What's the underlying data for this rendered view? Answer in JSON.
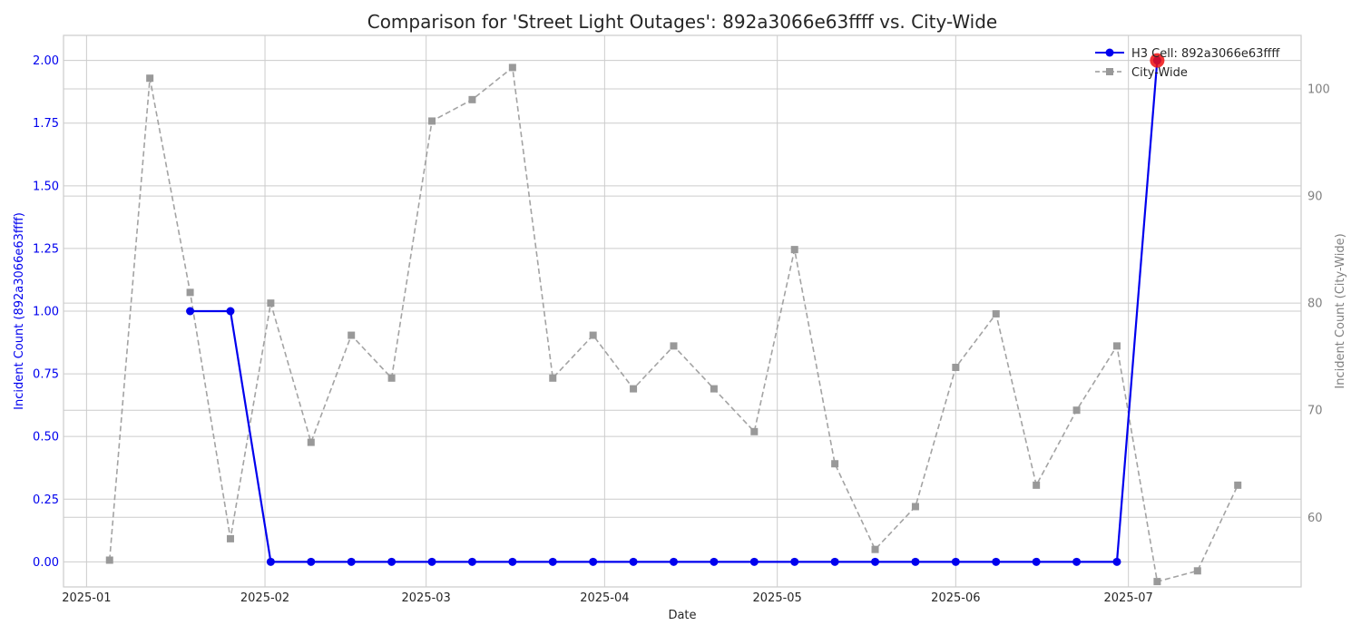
{
  "chart_data": {
    "type": "line",
    "title": "Comparison for 'Street Light Outages': 892a3066e63ffff vs. City-Wide",
    "xlabel": "Date",
    "ylabel_left": "Incident Count (892a3066e63ffff)",
    "ylabel_right": "Incident Count (City-Wide)",
    "x_ticks": [
      "2025-01",
      "2025-02",
      "2025-03",
      "2025-04",
      "2025-05",
      "2025-06",
      "2025-07"
    ],
    "y_left_ticks": [
      "0.00",
      "0.25",
      "0.50",
      "0.75",
      "1.00",
      "1.25",
      "1.50",
      "1.75",
      "2.00"
    ],
    "y_right_ticks": [
      "60",
      "70",
      "80",
      "90",
      "100"
    ],
    "y_left_lim": [
      -0.1,
      2.1
    ],
    "y_right_lim": [
      53.5,
      105
    ],
    "grid": true,
    "legend_position": "top-right",
    "colors": {
      "cell": "#0000ee",
      "city": "#999999",
      "highlight": "#ee1111",
      "left_axis": "#0000ee",
      "right_axis": "#808080"
    },
    "series": [
      {
        "name": "H3 Cell: 892a3066e63ffff",
        "axis": "left",
        "style": "solid-circle",
        "x": [
          "2025-01-19",
          "2025-01-26",
          "2025-02-02",
          "2025-02-09",
          "2025-02-16",
          "2025-02-23",
          "2025-03-02",
          "2025-03-09",
          "2025-03-16",
          "2025-03-23",
          "2025-03-30",
          "2025-04-06",
          "2025-04-13",
          "2025-04-20",
          "2025-04-27",
          "2025-05-04",
          "2025-05-11",
          "2025-05-18",
          "2025-05-25",
          "2025-06-01",
          "2025-06-08",
          "2025-06-15",
          "2025-06-22",
          "2025-06-29",
          "2025-07-06"
        ],
        "values": [
          1,
          1,
          0,
          0,
          0,
          0,
          0,
          0,
          0,
          0,
          0,
          0,
          0,
          0,
          0,
          0,
          0,
          0,
          0,
          0,
          0,
          0,
          0,
          0,
          2
        ]
      },
      {
        "name": "City-Wide",
        "axis": "right",
        "style": "dashed-square",
        "x": [
          "2025-01-05",
          "2025-01-12",
          "2025-01-19",
          "2025-01-26",
          "2025-02-02",
          "2025-02-09",
          "2025-02-16",
          "2025-02-23",
          "2025-03-02",
          "2025-03-09",
          "2025-03-16",
          "2025-03-23",
          "2025-03-30",
          "2025-04-06",
          "2025-04-13",
          "2025-04-20",
          "2025-04-27",
          "2025-05-04",
          "2025-05-11",
          "2025-05-18",
          "2025-05-25",
          "2025-06-01",
          "2025-06-08",
          "2025-06-15",
          "2025-06-22",
          "2025-06-29",
          "2025-07-06",
          "2025-07-13",
          "2025-07-20"
        ],
        "values": [
          56,
          101,
          81,
          58,
          80,
          67,
          77,
          73,
          97,
          99,
          102,
          73,
          77,
          72,
          76,
          72,
          68,
          85,
          65,
          57,
          61,
          74,
          79,
          63,
          70,
          76,
          54,
          55,
          63
        ]
      }
    ],
    "highlight": {
      "x": "2025-07-06",
      "value": 2
    }
  }
}
